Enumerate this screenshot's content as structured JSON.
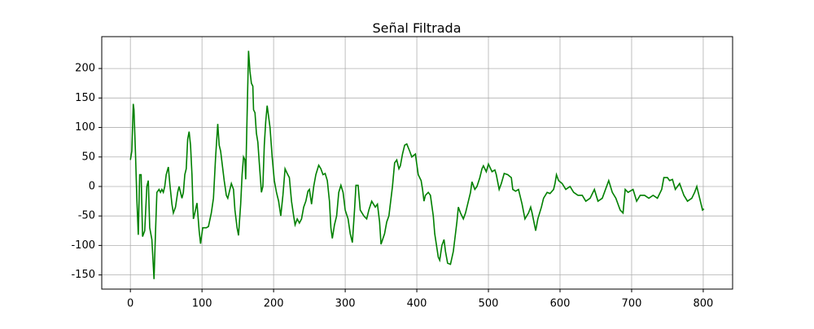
{
  "chart_data": {
    "type": "line",
    "title": "Señal Filtrada",
    "x": [
      0,
      2,
      4,
      5,
      7,
      9,
      11,
      13,
      15,
      17,
      20,
      23,
      25,
      27,
      30,
      33,
      35,
      37,
      40,
      42,
      44,
      46,
      48,
      50,
      53,
      55,
      58,
      60,
      63,
      66,
      68,
      70,
      72,
      74,
      76,
      78,
      80,
      82,
      84,
      86,
      88,
      90,
      93,
      96,
      98,
      101,
      104,
      106,
      109,
      113,
      116,
      119,
      122,
      124,
      126,
      129,
      131,
      134,
      136,
      139,
      141,
      144,
      146,
      149,
      151,
      154,
      156,
      158,
      160,
      161,
      165,
      167,
      169,
      171,
      172,
      174,
      176,
      178,
      180,
      183,
      185,
      187,
      189,
      191,
      195,
      198,
      201,
      204,
      207,
      210,
      213,
      216,
      219,
      222,
      225,
      228,
      230,
      233,
      236,
      239,
      242,
      245,
      248,
      250,
      253,
      256,
      259,
      263,
      266,
      269,
      272,
      275,
      278,
      280,
      282,
      285,
      288,
      291,
      294,
      297,
      300,
      304,
      307,
      310,
      313,
      315,
      318,
      321,
      326,
      330,
      333,
      337,
      342,
      345,
      348,
      350,
      355,
      358,
      361,
      366,
      369,
      372,
      375,
      377,
      380,
      383,
      386,
      390,
      393,
      398,
      402,
      406,
      408,
      410,
      412,
      416,
      419,
      423,
      425,
      430,
      432,
      435,
      438,
      440,
      443,
      447,
      451,
      453,
      456,
      458,
      461,
      465,
      468,
      472,
      475,
      477,
      481,
      484,
      488,
      491,
      493,
      497,
      500,
      505,
      509,
      511,
      515,
      518,
      522,
      527,
      532,
      534,
      538,
      542,
      547,
      551,
      556,
      559,
      561,
      566,
      569,
      574,
      577,
      582,
      586,
      591,
      593,
      595,
      598,
      603,
      608,
      614,
      619,
      625,
      631,
      636,
      642,
      648,
      653,
      659,
      665,
      668,
      673,
      678,
      684,
      688,
      691,
      695,
      702,
      707,
      712,
      718,
      724,
      730,
      736,
      742,
      745,
      750,
      753,
      757,
      761,
      764,
      767,
      773,
      778,
      784,
      788,
      791,
      795,
      799,
      801
    ],
    "series": [
      {
        "name": "Señal Filtrada",
        "color": "#008000",
        "values": [
          45,
          60,
          140,
          130,
          60,
          -20,
          -82,
          20,
          20,
          -85,
          -75,
          0,
          10,
          -70,
          -90,
          -157,
          -80,
          -10,
          -5,
          -10,
          -5,
          -10,
          0,
          20,
          33,
          5,
          -30,
          -45,
          -35,
          -10,
          0,
          -10,
          -20,
          -10,
          20,
          30,
          80,
          93,
          70,
          20,
          -55,
          -45,
          -28,
          -75,
          -97,
          -70,
          -70,
          -70,
          -68,
          -45,
          -20,
          50,
          106,
          70,
          60,
          30,
          10,
          -15,
          -20,
          -5,
          5,
          -5,
          -40,
          -70,
          -83,
          -30,
          20,
          50,
          45,
          12,
          230,
          195,
          175,
          170,
          130,
          125,
          90,
          75,
          40,
          -10,
          0,
          70,
          110,
          137,
          100,
          50,
          10,
          -10,
          -25,
          -50,
          -15,
          30,
          22,
          15,
          -25,
          -50,
          -65,
          -55,
          -62,
          -55,
          -35,
          -25,
          -8,
          -5,
          -30,
          0,
          20,
          36,
          30,
          20,
          22,
          10,
          -25,
          -70,
          -88,
          -65,
          -50,
          -10,
          2,
          -10,
          -40,
          -55,
          -80,
          -95,
          -40,
          2,
          2,
          -40,
          -50,
          -55,
          -40,
          -25,
          -35,
          -30,
          -60,
          -98,
          -80,
          -60,
          -50,
          0,
          40,
          45,
          30,
          35,
          55,
          70,
          72,
          60,
          50,
          55,
          20,
          10,
          -5,
          -25,
          -15,
          -10,
          -15,
          -50,
          -80,
          -120,
          -125,
          -100,
          -90,
          -110,
          -130,
          -132,
          -110,
          -90,
          -60,
          -35,
          -45,
          -55,
          -45,
          -25,
          -10,
          8,
          -5,
          0,
          15,
          30,
          35,
          25,
          38,
          25,
          28,
          20,
          -5,
          5,
          22,
          20,
          15,
          -5,
          -8,
          -5,
          -30,
          -55,
          -45,
          -35,
          -45,
          -75,
          -55,
          -35,
          -20,
          -10,
          -12,
          -5,
          5,
          20,
          10,
          5,
          -5,
          0,
          -10,
          -15,
          -15,
          -25,
          -20,
          -5,
          -25,
          -20,
          0,
          10,
          -10,
          -20,
          -40,
          -45,
          -5,
          -10,
          -5,
          -25,
          -15,
          -15,
          -20,
          -15,
          -20,
          -5,
          15,
          15,
          10,
          12,
          -5,
          0,
          5,
          -15,
          -25,
          -20,
          -10,
          0,
          -20,
          -40,
          -38
        ]
      }
    ],
    "xlim": [
      -40,
      841
    ],
    "ylim": [
      -174,
      254
    ],
    "xticks": [
      0,
      100,
      200,
      300,
      400,
      500,
      600,
      700,
      800
    ],
    "yticks": [
      -150,
      -100,
      -50,
      0,
      50,
      100,
      150,
      200
    ],
    "grid": true
  }
}
